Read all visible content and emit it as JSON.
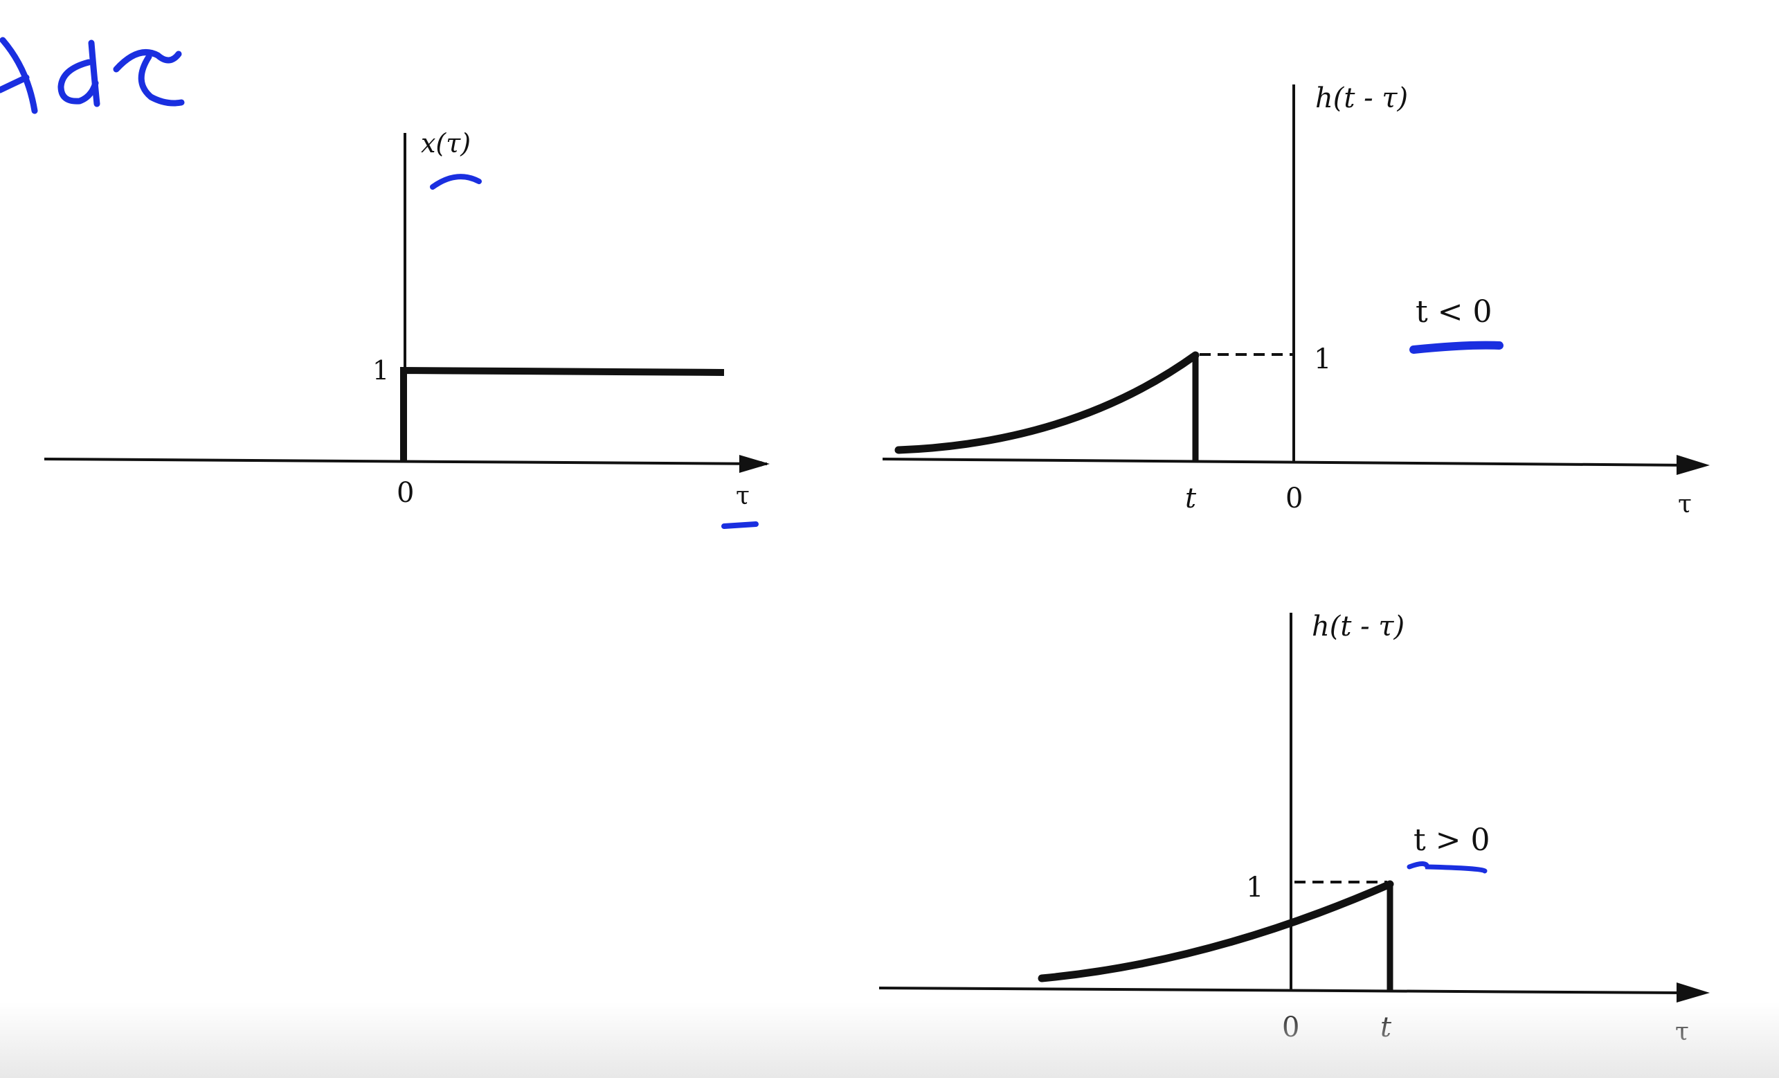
{
  "colors": {
    "ink": "#111111",
    "annotation": "#1a2fe0",
    "background": "#ffffff"
  },
  "handwriting": {
    "integral_fragment": "dτ"
  },
  "diagrams": {
    "input": {
      "ylabel": "x(τ)",
      "xlabel": "τ",
      "step_level_label": "1",
      "origin_label": "0",
      "step_start": 0,
      "step_value": 1
    },
    "shifted_case_negative": {
      "ylabel": "h(t - τ)",
      "xlabel": "τ",
      "level_label": "1",
      "t_label": "t",
      "origin_label": "0",
      "condition": "t < 0"
    },
    "shifted_case_positive": {
      "ylabel": "h(t - τ)",
      "xlabel": "τ",
      "level_label": "1",
      "t_label": "t",
      "origin_label": "0",
      "condition": "t > 0"
    }
  }
}
